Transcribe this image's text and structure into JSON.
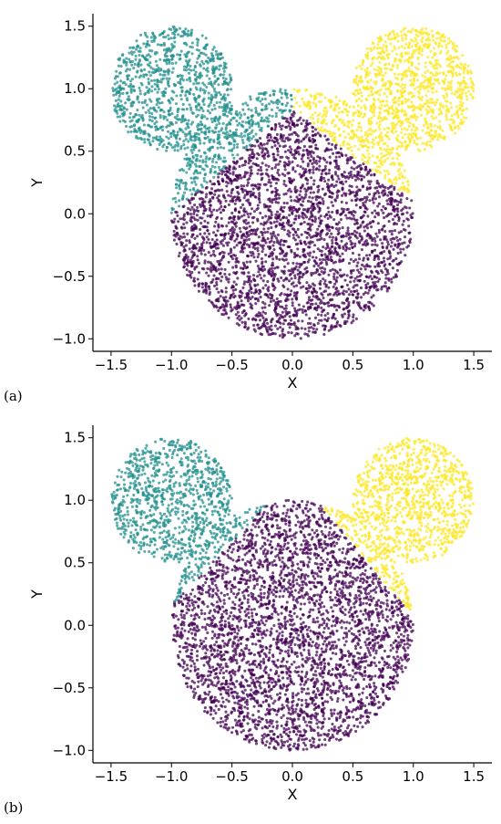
{
  "panels": [
    {
      "label": "(a)"
    },
    {
      "label": "(b)"
    }
  ],
  "colors": {
    "teal": "#21908d",
    "yellow": "#fde725",
    "purple": "#440154"
  },
  "chart_data": [
    {
      "type": "scatter",
      "title": "",
      "xlabel": "X",
      "ylabel": "Y",
      "xlim": [
        -1.65,
        1.65
      ],
      "ylim": [
        -1.1,
        1.6
      ],
      "xticks": [
        -1.5,
        -1.0,
        -0.5,
        0.0,
        0.5,
        1.0,
        1.5
      ],
      "xtick_labels": [
        "−1.5",
        "−1.0",
        "−0.5",
        "0.0",
        "0.5",
        "1.0",
        "1.5"
      ],
      "yticks": [
        -1.0,
        -0.5,
        0.0,
        0.5,
        1.0,
        1.5
      ],
      "ytick_labels": [
        "−1.0",
        "−0.5",
        "0.0",
        "0.5",
        "1.0",
        "1.5"
      ],
      "grid": false,
      "shapes": [
        {
          "kind": "head",
          "center": [
            0.0,
            0.0
          ],
          "radius": 1.0
        },
        {
          "kind": "left-ear",
          "center": [
            -1.0,
            1.0
          ],
          "radius": 0.5
        },
        {
          "kind": "right-ear",
          "center": [
            1.0,
            1.0
          ],
          "radius": 0.5
        }
      ],
      "clusters": [
        {
          "color": "teal",
          "region": "left ear plus upper-left of head above boundary line through (-0.97, 0.02) and (0.0, 0.83)"
        },
        {
          "color": "yellow",
          "region": "right ear plus upper-right of head above boundary line through (0.0, 0.83) and (0.97, 0.12)"
        },
        {
          "color": "purple",
          "region": "remainder of head"
        }
      ],
      "boundary_points": [
        [
          -0.97,
          0.02
        ],
        [
          0.0,
          0.83
        ],
        [
          0.97,
          0.12
        ]
      ]
    },
    {
      "type": "scatter",
      "title": "",
      "xlabel": "X",
      "ylabel": "Y",
      "xlim": [
        -1.65,
        1.65
      ],
      "ylim": [
        -1.1,
        1.6
      ],
      "xticks": [
        -1.5,
        -1.0,
        -0.5,
        0.0,
        0.5,
        1.0,
        1.5
      ],
      "xtick_labels": [
        "−1.5",
        "−1.0",
        "−0.5",
        "0.0",
        "0.5",
        "1.0",
        "1.5"
      ],
      "yticks": [
        -1.0,
        -0.5,
        0.0,
        0.5,
        1.0,
        1.5
      ],
      "ytick_labels": [
        "−1.0",
        "−0.5",
        "0.0",
        "0.5",
        "1.0",
        "1.5"
      ],
      "grid": false,
      "shapes": [
        {
          "kind": "head",
          "center": [
            0.0,
            0.0
          ],
          "radius": 1.0
        },
        {
          "kind": "left-ear",
          "center": [
            -1.0,
            1.0
          ],
          "radius": 0.5
        },
        {
          "kind": "right-ear",
          "center": [
            1.0,
            1.0
          ],
          "radius": 0.5
        }
      ],
      "clusters": [
        {
          "color": "teal",
          "region": "left ear plus small upper-left sliver of head above line through (-0.83, 0.33) and (-0.2, 0.98)"
        },
        {
          "color": "yellow",
          "region": "right ear plus small upper-right sliver of head above line through (0.22, 0.98) and (0.8, 0.3)"
        },
        {
          "color": "purple",
          "region": "remainder of head"
        }
      ],
      "boundary_points": [
        [
          -0.83,
          0.33
        ],
        [
          -0.2,
          0.98
        ],
        [
          0.22,
          0.98
        ],
        [
          0.8,
          0.3
        ]
      ]
    }
  ]
}
